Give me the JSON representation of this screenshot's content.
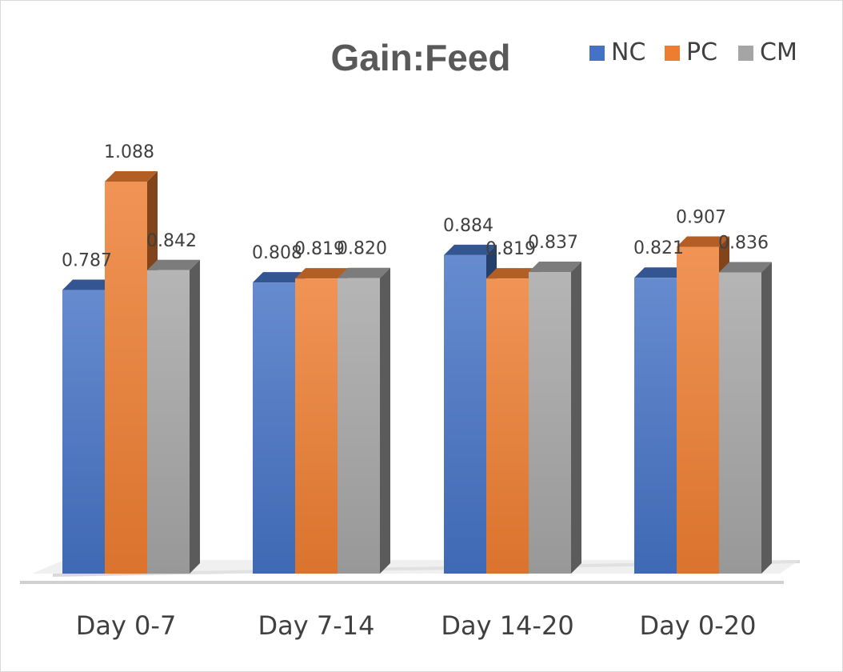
{
  "chart_data": {
    "type": "bar",
    "title": "Gain:Feed",
    "categories": [
      "Day 0-7",
      "Day 7-14",
      "Day 14-20",
      "Day 0-20"
    ],
    "series": [
      {
        "name": "NC",
        "values": [
          0.787,
          0.808,
          0.884,
          0.821
        ],
        "color": "#4472c4"
      },
      {
        "name": "PC",
        "values": [
          1.088,
          0.819,
          0.819,
          0.907
        ],
        "color": "#ed7d31"
      },
      {
        "name": "CM",
        "values": [
          0.842,
          0.82,
          0.837,
          0.836
        ],
        "color": "#a5a5a5"
      }
    ],
    "value_labels": [
      [
        "0.787",
        "0.808",
        "0.884",
        "0.821"
      ],
      [
        "1.088",
        "0.819",
        "0.819",
        "0.907"
      ],
      [
        "0.842",
        "0.820",
        "0.837",
        "0.836"
      ]
    ],
    "ylim": [
      0,
      1.088
    ],
    "style": "3d-clustered-column",
    "legend_position": "top-right",
    "xlabel": "",
    "ylabel": ""
  }
}
